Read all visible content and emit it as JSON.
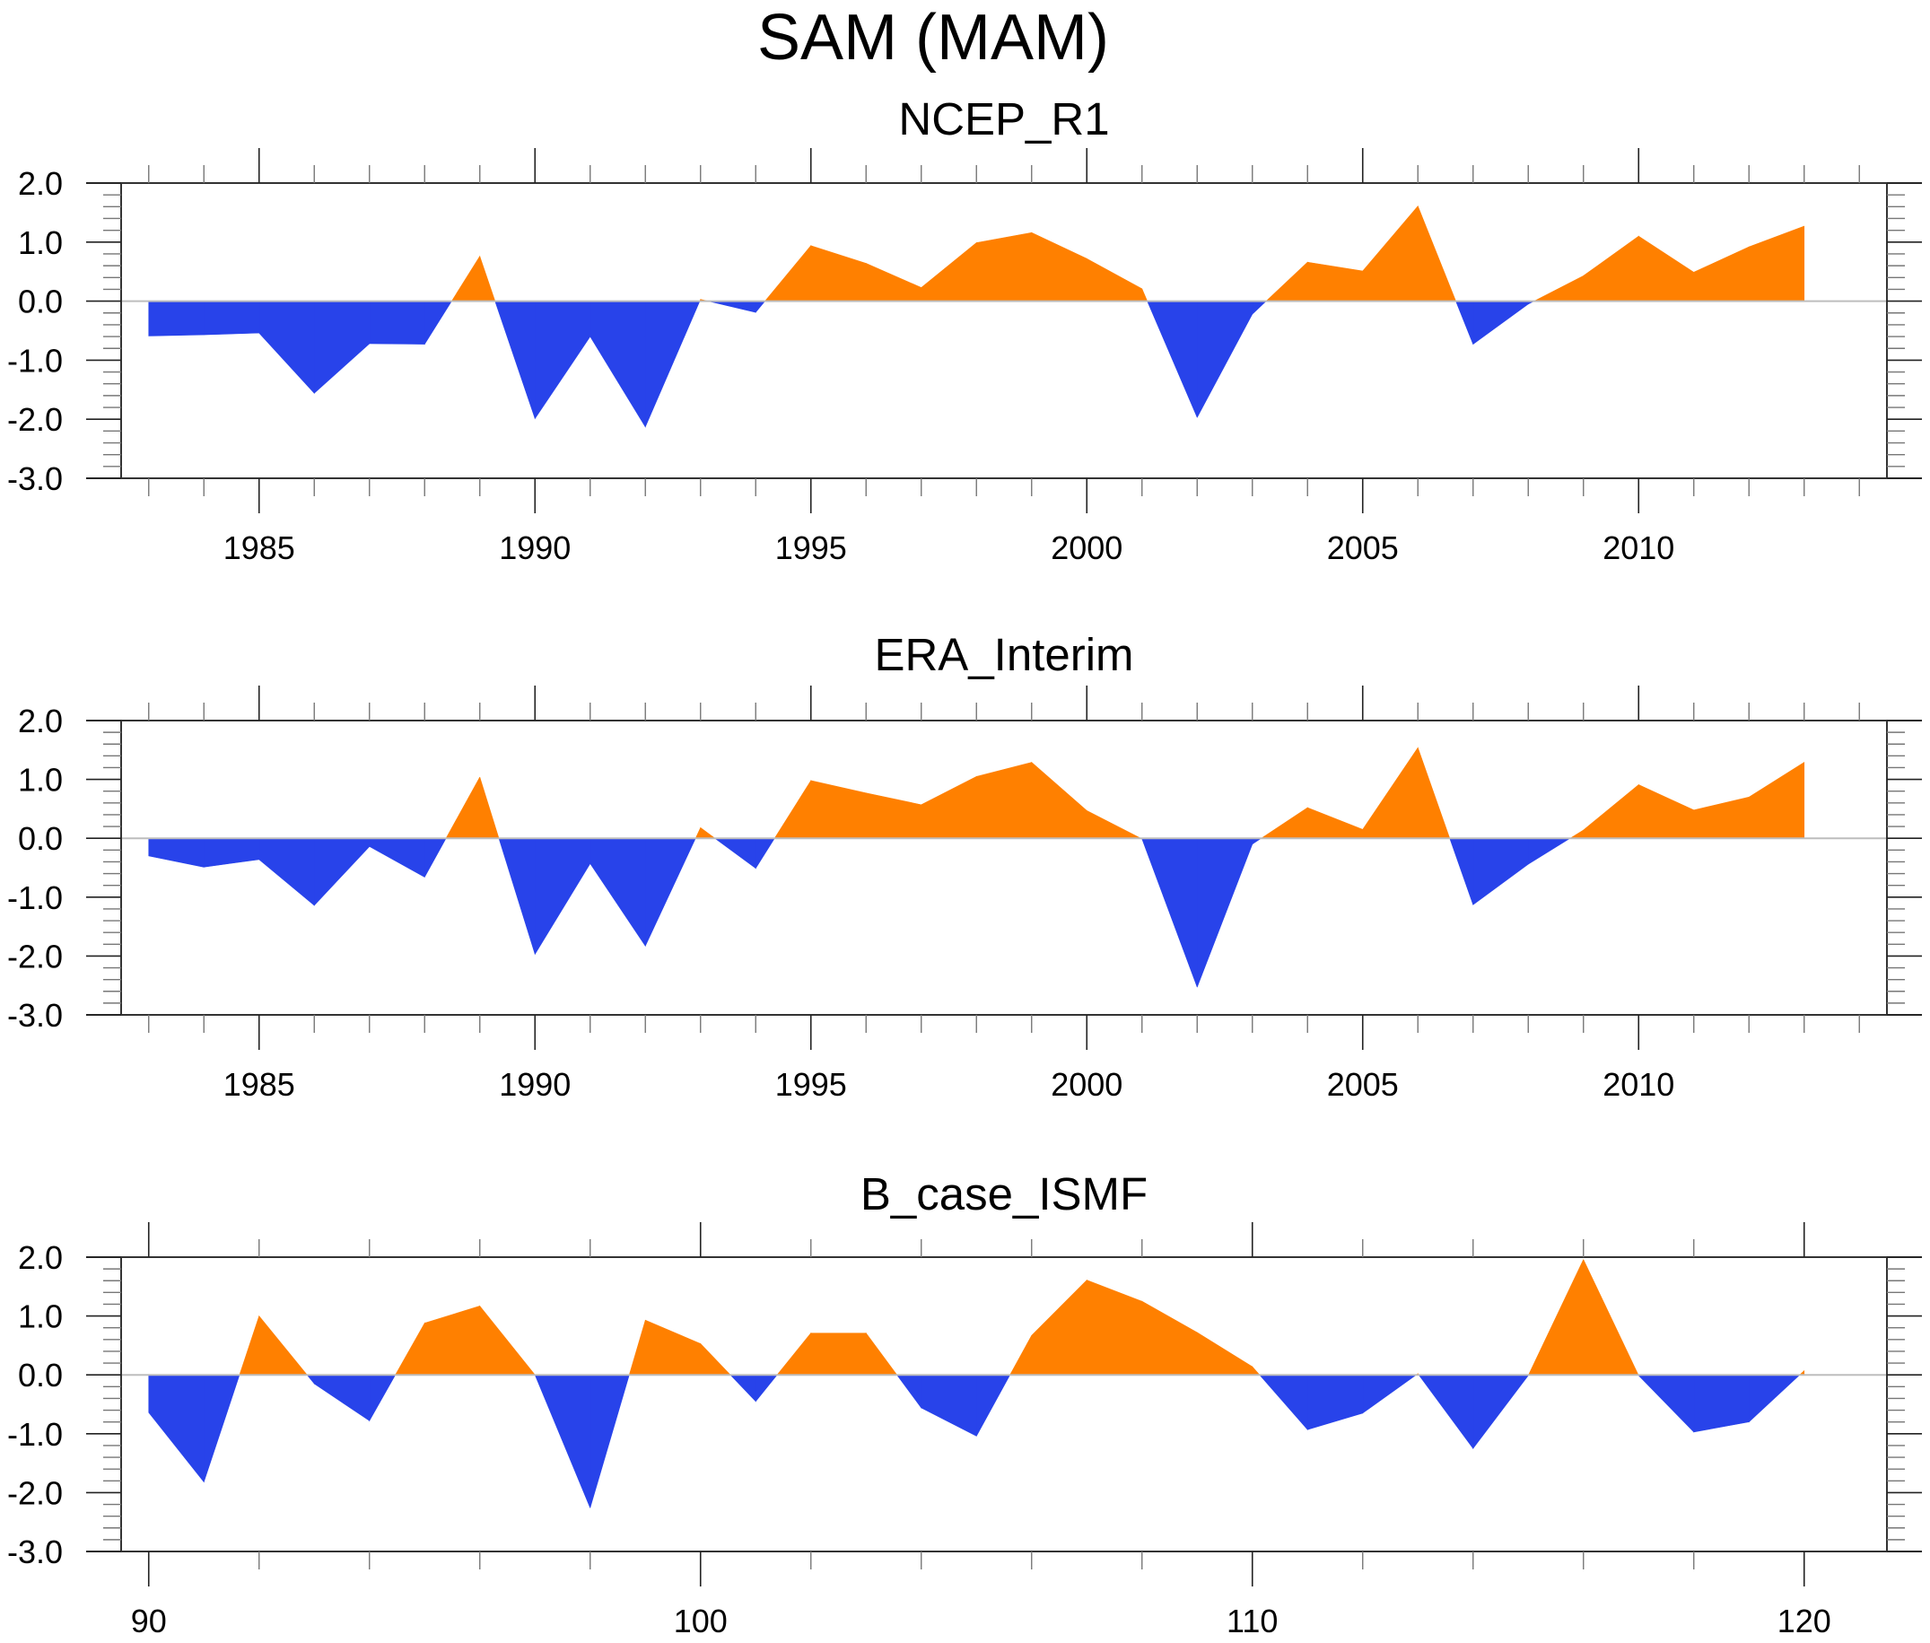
{
  "title": "SAM (MAM)",
  "colors": {
    "positive": "#FF8000",
    "negative": "#2843EA",
    "zero_line": "#BDBDBD",
    "axis": "#333333"
  },
  "chart_data": [
    {
      "type": "area",
      "title": "NCEP_R1",
      "xlabel": "",
      "ylabel": "",
      "xlim": [
        1982.5,
        2014.5
      ],
      "ylim": [
        -3.0,
        2.0
      ],
      "grid": false,
      "legend": "none",
      "fill_above_zero": "positive",
      "fill_below_zero": "negative",
      "x_major_ticks": [
        1985,
        1990,
        1995,
        2000,
        2005,
        2010
      ],
      "x_tick_labels": [
        "1985",
        "1990",
        "1995",
        "2000",
        "2005",
        "2010"
      ],
      "x_minor_step": 1,
      "y_major_ticks": [
        2.0,
        1.0,
        0.0,
        -1.0,
        -2.0,
        -3.0
      ],
      "y_tick_labels": [
        "2.0",
        "1.0",
        "0.0",
        "-1.0",
        "-2.0",
        "-3.0"
      ],
      "y_minor_step": 0.2,
      "x": [
        1983,
        1984,
        1985,
        1986,
        1987,
        1988,
        1989,
        1990,
        1991,
        1992,
        1993,
        1994,
        1995,
        1996,
        1997,
        1998,
        1999,
        2000,
        2001,
        2002,
        2003,
        2004,
        2005,
        2006,
        2007,
        2008,
        2009,
        2010,
        2011,
        2012,
        2013
      ],
      "values": [
        -0.59,
        -0.57,
        -0.54,
        -1.56,
        -0.72,
        -0.73,
        0.76,
        -1.99,
        -0.6,
        -2.13,
        0.03,
        -0.19,
        0.94,
        0.64,
        0.23,
        0.99,
        1.16,
        0.72,
        0.21,
        -1.97,
        -0.22,
        0.66,
        0.51,
        1.61,
        -0.73,
        -0.05,
        0.43,
        1.1,
        0.49,
        0.92,
        1.27
      ]
    },
    {
      "type": "area",
      "title": "ERA_Interim",
      "xlabel": "",
      "ylabel": "",
      "xlim": [
        1982.5,
        2014.5
      ],
      "ylim": [
        -3.0,
        2.0
      ],
      "grid": false,
      "legend": "none",
      "fill_above_zero": "positive",
      "fill_below_zero": "negative",
      "x_major_ticks": [
        1985,
        1990,
        1995,
        2000,
        2005,
        2010
      ],
      "x_tick_labels": [
        "1985",
        "1990",
        "1995",
        "2000",
        "2005",
        "2010"
      ],
      "x_minor_step": 1,
      "y_major_ticks": [
        2.0,
        1.0,
        0.0,
        -1.0,
        -2.0,
        -3.0
      ],
      "y_tick_labels": [
        "2.0",
        "1.0",
        "0.0",
        "-1.0",
        "-2.0",
        "-3.0"
      ],
      "y_minor_step": 0.2,
      "x": [
        1983,
        1984,
        1985,
        1986,
        1987,
        1988,
        1989,
        1990,
        1991,
        1992,
        1993,
        1994,
        1995,
        1996,
        1997,
        1998,
        1999,
        2000,
        2001,
        2002,
        2003,
        2004,
        2005,
        2006,
        2007,
        2008,
        2009,
        2010,
        2011,
        2012,
        2013
      ],
      "values": [
        -0.3,
        -0.49,
        -0.36,
        -1.14,
        -0.14,
        -0.66,
        1.04,
        -1.97,
        -0.43,
        -1.83,
        0.18,
        -0.51,
        0.98,
        0.77,
        0.57,
        1.05,
        1.29,
        0.47,
        -0.01,
        -2.53,
        -0.1,
        0.52,
        0.15,
        1.54,
        -1.13,
        -0.44,
        0.14,
        0.91,
        0.48,
        0.7,
        1.29
      ]
    },
    {
      "type": "area",
      "title": "B_case_ISMF",
      "xlabel": "",
      "ylabel": "",
      "xlim": [
        89.5,
        121.5
      ],
      "ylim": [
        -3.0,
        2.0
      ],
      "grid": false,
      "legend": "none",
      "fill_above_zero": "positive",
      "fill_below_zero": "negative",
      "x_major_ticks": [
        90,
        100,
        110,
        120
      ],
      "x_tick_labels": [
        "90",
        "100",
        "110",
        "120"
      ],
      "x_minor_step": 2,
      "y_major_ticks": [
        2.0,
        1.0,
        0.0,
        -1.0,
        -2.0,
        -3.0
      ],
      "y_tick_labels": [
        "2.0",
        "1.0",
        "0.0",
        "-1.0",
        "-2.0",
        "-3.0"
      ],
      "y_minor_step": 0.2,
      "x": [
        90,
        91,
        92,
        93,
        94,
        95,
        96,
        97,
        98,
        99,
        100,
        101,
        102,
        103,
        104,
        105,
        106,
        107,
        108,
        109,
        110,
        111,
        112,
        113,
        114,
        115,
        116,
        117,
        118,
        119,
        120
      ],
      "values": [
        -0.64,
        -1.82,
        1.0,
        -0.15,
        -0.78,
        0.88,
        1.17,
        0.0,
        -2.26,
        0.93,
        0.53,
        -0.45,
        0.71,
        0.71,
        -0.56,
        -1.04,
        0.67,
        1.61,
        1.25,
        0.72,
        0.14,
        -0.93,
        -0.65,
        0.02,
        -1.25,
        -0.01,
        1.96,
        -0.01,
        -0.97,
        -0.8,
        0.07
      ]
    }
  ]
}
